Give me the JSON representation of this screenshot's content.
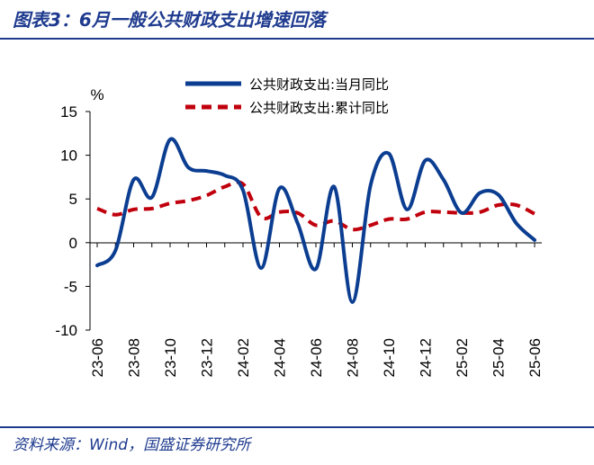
{
  "header": {
    "title": "图表3：6月一般公共财政支出增速回落"
  },
  "footer": {
    "source": "资料来源：Wind，国盛证券研究所"
  },
  "chart_data": {
    "type": "line",
    "ylabel": "%",
    "ylim": [
      -10,
      15
    ],
    "yticks": [
      "15",
      "10",
      "5",
      "0",
      "-5",
      "-10"
    ],
    "xticklabels": [
      "23-06",
      "23-08",
      "23-10",
      "23-12",
      "24-02",
      "24-04",
      "24-06",
      "24-08",
      "24-10",
      "24-12",
      "25-02",
      "25-04",
      "25-06"
    ],
    "x": [
      "2023-06",
      "2023-07",
      "2023-08",
      "2023-09",
      "2023-10",
      "2023-11",
      "2023-12",
      "2024-01",
      "2024-02",
      "2024-03",
      "2024-04",
      "2024-05",
      "2024-06",
      "2024-07",
      "2024-08",
      "2024-09",
      "2024-10",
      "2024-11",
      "2024-12",
      "2025-01",
      "2025-02",
      "2025-03",
      "2025-04",
      "2025-05",
      "2025-06"
    ],
    "legend_position": "top-right",
    "series": [
      {
        "name": "公共财政支出:当月同比",
        "color": "#0b3d91",
        "style": "solid",
        "values": [
          -2.6,
          -0.9,
          7.2,
          5.2,
          11.8,
          8.6,
          8.2,
          7.7,
          6.0,
          -2.9,
          6.2,
          2.2,
          -3.0,
          6.4,
          -6.8,
          6.6,
          10.2,
          3.8,
          9.4,
          7.2,
          3.4,
          5.7,
          5.5,
          2.2,
          0.3
        ]
      },
      {
        "name": "公共财政支出:累计同比",
        "color": "#c0000c",
        "style": "dashed",
        "values": [
          3.9,
          3.2,
          3.8,
          3.9,
          4.5,
          4.8,
          5.4,
          6.4,
          6.7,
          2.9,
          3.5,
          3.4,
          2.0,
          2.5,
          1.5,
          2.0,
          2.7,
          2.7,
          3.5,
          3.5,
          3.4,
          3.5,
          4.3,
          4.3,
          3.3
        ]
      }
    ]
  }
}
